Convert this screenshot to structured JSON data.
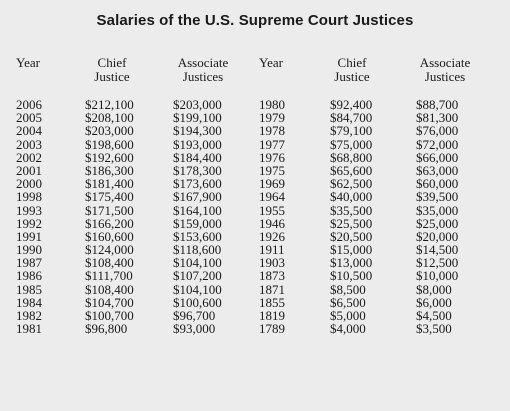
{
  "title": "Salaries of the U.S. Supreme Court Justices",
  "headers": {
    "year": "Year",
    "chief_line1": "Chief",
    "chief_line2": "Justice",
    "assoc_line1": "Associate",
    "assoc_line2": "Justices"
  },
  "rows": [
    {
      "year1": "2006",
      "chief1": "$212,100",
      "assoc1": "$203,000",
      "year2": "1980",
      "chief2": "$92,400",
      "assoc2": "$88,700"
    },
    {
      "year1": "2005",
      "chief1": "$208,100",
      "assoc1": "$199,100",
      "year2": "1979",
      "chief2": "$84,700",
      "assoc2": "$81,300"
    },
    {
      "year1": "2004",
      "chief1": "$203,000",
      "assoc1": "$194,300",
      "year2": "1978",
      "chief2": "$79,100",
      "assoc2": "$76,000"
    },
    {
      "year1": "2003",
      "chief1": "$198,600",
      "assoc1": "$193,000",
      "year2": "1977",
      "chief2": "$75,000",
      "assoc2": "$72,000"
    },
    {
      "year1": "2002",
      "chief1": "$192,600",
      "assoc1": "$184,400",
      "year2": "1976",
      "chief2": "$68,800",
      "assoc2": "$66,000"
    },
    {
      "year1": "2001",
      "chief1": "$186,300",
      "assoc1": "$178,300",
      "year2": "1975",
      "chief2": "$65,600",
      "assoc2": "$63,000"
    },
    {
      "year1": "2000",
      "chief1": "$181,400",
      "assoc1": "$173,600",
      "year2": "1969",
      "chief2": "$62,500",
      "assoc2": "$60,000"
    },
    {
      "year1": "1998",
      "chief1": "$175,400",
      "assoc1": "$167,900",
      "year2": "1964",
      "chief2": "$40,000",
      "assoc2": "$39,500"
    },
    {
      "year1": "1993",
      "chief1": "$171,500",
      "assoc1": "$164,100",
      "year2": "1955",
      "chief2": "$35,500",
      "assoc2": "$35,000"
    },
    {
      "year1": "1992",
      "chief1": "$166,200",
      "assoc1": "$159,000",
      "year2": "1946",
      "chief2": "$25,500",
      "assoc2": "$25,000"
    },
    {
      "year1": "1991",
      "chief1": "$160,600",
      "assoc1": "$153,600",
      "year2": "1926",
      "chief2": "$20,500",
      "assoc2": "$20,000"
    },
    {
      "year1": "1990",
      "chief1": "$124,000",
      "assoc1": "$118,600",
      "year2": "1911",
      "chief2": "$15,000",
      "assoc2": "$14,500"
    },
    {
      "year1": "1987",
      "chief1": "$108,400",
      "assoc1": "$104,100",
      "year2": "1903",
      "chief2": "$13,000",
      "assoc2": "$12,500"
    },
    {
      "year1": "1986",
      "chief1": "$111,700",
      "assoc1": "$107,200",
      "year2": "1873",
      "chief2": "$10,500",
      "assoc2": "$10,000"
    },
    {
      "year1": "1985",
      "chief1": "$108,400",
      "assoc1": "$104,100",
      "year2": "1871",
      "chief2": "$8,500",
      "assoc2": "$8,000"
    },
    {
      "year1": "1984",
      "chief1": "$104,700",
      "assoc1": "$100,600",
      "year2": "1855",
      "chief2": "$6,500",
      "assoc2": "$6,000"
    },
    {
      "year1": "1982",
      "chief1": "$100,700",
      "assoc1": "$96,700",
      "year2": "1819",
      "chief2": "$5,000",
      "assoc2": "$4,500"
    },
    {
      "year1": "1981",
      "chief1": "$96,800",
      "assoc1": "$93,000",
      "year2": "1789",
      "chief2": "$4,000",
      "assoc2": "$3,500"
    }
  ]
}
